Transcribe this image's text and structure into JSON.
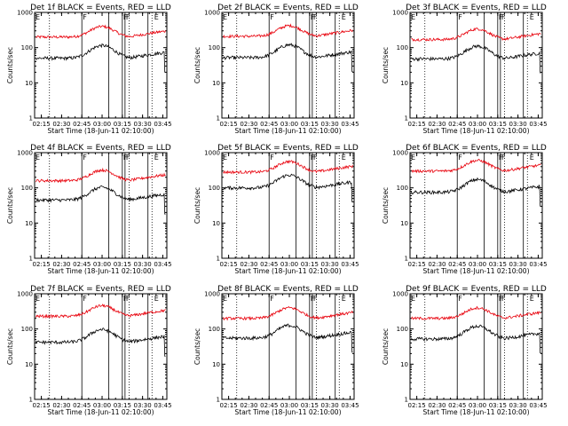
{
  "figure": {
    "panels": [
      {
        "title": "Det 1f BLACK = Events, RED = LLD",
        "lld": 200,
        "events": 50
      },
      {
        "title": "Det 2f BLACK = Events, RED = LLD",
        "lld": 210,
        "events": 52
      },
      {
        "title": "Det 3f BLACK = Events, RED = LLD",
        "lld": 170,
        "events": 48
      },
      {
        "title": "Det 4f BLACK = Events, RED = LLD",
        "lld": 160,
        "events": 45
      },
      {
        "title": "Det 5f BLACK = Events, RED = LLD",
        "lld": 280,
        "events": 100
      },
      {
        "title": "Det 6f BLACK = Events, RED = LLD",
        "lld": 300,
        "events": 75
      },
      {
        "title": "Det 7f BLACK = Events, RED = LLD",
        "lld": 230,
        "events": 42
      },
      {
        "title": "Det 8f BLACK = Events, RED = LLD",
        "lld": 200,
        "events": 55
      },
      {
        "title": "Det 9f BLACK = Events, RED = LLD",
        "lld": 200,
        "events": 52
      }
    ],
    "xlabel": "Start Time (18-Jun-11 02:10:00)",
    "ylabel": "Counts/sec",
    "xticks": [
      "02:15",
      "02:30",
      "02:45",
      "03:00",
      "03:15",
      "03:30",
      "03:45"
    ],
    "yticks": [
      "1",
      "10",
      "100",
      "1000"
    ],
    "markers": [
      "E",
      "F",
      "F",
      "F",
      "E"
    ]
  },
  "chart_data": {
    "type": "line",
    "x_unit": "time (HH:MM, 18-Jun-11)",
    "x_range": [
      "02:10",
      "03:48"
    ],
    "y_scale": "log",
    "ylim": [
      1,
      1000
    ],
    "series": [
      {
        "name": "Events",
        "color": "#000000"
      },
      {
        "name": "LLD",
        "color": "#e8000b"
      }
    ],
    "vertical_lines_solid": [
      "02:45",
      "03:05",
      "03:15",
      "03:17",
      "03:34"
    ],
    "vertical_lines_dotted": [
      "02:21",
      "03:20",
      "03:37"
    ],
    "marker_positions": [
      "02:10",
      "02:45",
      "03:15",
      "03:17",
      "03:38"
    ],
    "peak_time": "03:00",
    "events_dropout_time": "03:46"
  }
}
